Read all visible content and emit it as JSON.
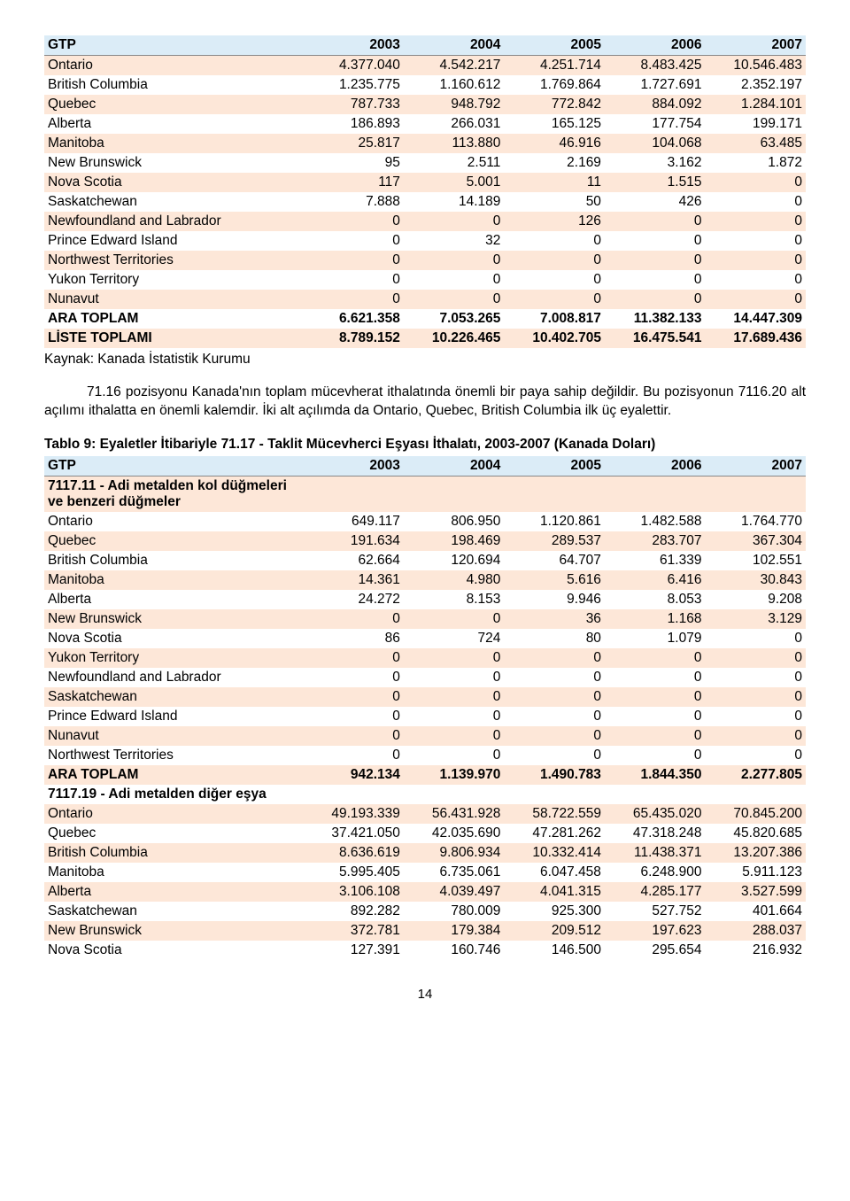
{
  "table1": {
    "columns": [
      "GTP",
      "2003",
      "2004",
      "2005",
      "2006",
      "2007"
    ],
    "rows": [
      {
        "c": [
          "Ontario",
          "4.377.040",
          "4.542.217",
          "4.251.714",
          "8.483.425",
          "10.546.483"
        ],
        "bold": false
      },
      {
        "c": [
          "British Columbia",
          "1.235.775",
          "1.160.612",
          "1.769.864",
          "1.727.691",
          "2.352.197"
        ],
        "bold": false
      },
      {
        "c": [
          "Quebec",
          "787.733",
          "948.792",
          "772.842",
          "884.092",
          "1.284.101"
        ],
        "bold": false
      },
      {
        "c": [
          "Alberta",
          "186.893",
          "266.031",
          "165.125",
          "177.754",
          "199.171"
        ],
        "bold": false
      },
      {
        "c": [
          "Manitoba",
          "25.817",
          "113.880",
          "46.916",
          "104.068",
          "63.485"
        ],
        "bold": false
      },
      {
        "c": [
          "New Brunswick",
          "95",
          "2.511",
          "2.169",
          "3.162",
          "1.872"
        ],
        "bold": false
      },
      {
        "c": [
          "Nova Scotia",
          "117",
          "5.001",
          "11",
          "1.515",
          "0"
        ],
        "bold": false
      },
      {
        "c": [
          "Saskatchewan",
          "7.888",
          "14.189",
          "50",
          "426",
          "0"
        ],
        "bold": false
      },
      {
        "c": [
          "Newfoundland and Labrador",
          "0",
          "0",
          "126",
          "0",
          "0"
        ],
        "bold": false
      },
      {
        "c": [
          "Prince Edward Island",
          "0",
          "32",
          "0",
          "0",
          "0"
        ],
        "bold": false
      },
      {
        "c": [
          "Northwest Territories",
          "0",
          "0",
          "0",
          "0",
          "0"
        ],
        "bold": false
      },
      {
        "c": [
          "Yukon Territory",
          "0",
          "0",
          "0",
          "0",
          "0"
        ],
        "bold": false
      },
      {
        "c": [
          "Nunavut",
          "0",
          "0",
          "0",
          "0",
          "0"
        ],
        "bold": false
      },
      {
        "c": [
          "ARA TOPLAM",
          "6.621.358",
          "7.053.265",
          "7.008.817",
          "11.382.133",
          "14.447.309"
        ],
        "bold": true
      },
      {
        "c": [
          "LİSTE TOPLAMI",
          "8.789.152",
          "10.226.465",
          "10.402.705",
          "16.475.541",
          "17.689.436"
        ],
        "bold": true
      }
    ]
  },
  "source_text": "Kaynak: Kanada İstatistik Kurumu",
  "paragraph": "71.16 pozisyonu Kanada'nın toplam mücevherat ithalatında önemli bir paya sahip değildir. Bu pozisyonun 7116.20 alt açılımı ithalatta en önemli kalemdir. İki alt açılımda da Ontario, Quebec, British Columbia ilk üç eyalettir.",
  "table2_title": "Tablo 9: Eyaletler İtibariyle 71.17 - Taklit Mücevherci Eşyası İthalatı, 2003-2007 (Kanada Doları)",
  "table2": {
    "columns": [
      "GTP",
      "2003",
      "2004",
      "2005",
      "2006",
      "2007"
    ],
    "rows": [
      {
        "c": [
          "7117.11 - Adi metalden kol düğmeleri ve benzeri düğmeler",
          "",
          "",
          "",
          "",
          ""
        ],
        "bold": true
      },
      {
        "c": [
          "Ontario",
          "649.117",
          "806.950",
          "1.120.861",
          "1.482.588",
          "1.764.770"
        ],
        "bold": false
      },
      {
        "c": [
          "Quebec",
          "191.634",
          "198.469",
          "289.537",
          "283.707",
          "367.304"
        ],
        "bold": false
      },
      {
        "c": [
          "British Columbia",
          "62.664",
          "120.694",
          "64.707",
          "61.339",
          "102.551"
        ],
        "bold": false
      },
      {
        "c": [
          "Manitoba",
          "14.361",
          "4.980",
          "5.616",
          "6.416",
          "30.843"
        ],
        "bold": false
      },
      {
        "c": [
          "Alberta",
          "24.272",
          "8.153",
          "9.946",
          "8.053",
          "9.208"
        ],
        "bold": false
      },
      {
        "c": [
          "New Brunswick",
          "0",
          "0",
          "36",
          "1.168",
          "3.129"
        ],
        "bold": false
      },
      {
        "c": [
          "Nova Scotia",
          "86",
          "724",
          "80",
          "1.079",
          "0"
        ],
        "bold": false
      },
      {
        "c": [
          "Yukon Territory",
          "0",
          "0",
          "0",
          "0",
          "0"
        ],
        "bold": false
      },
      {
        "c": [
          "Newfoundland and Labrador",
          "0",
          "0",
          "0",
          "0",
          "0"
        ],
        "bold": false
      },
      {
        "c": [
          "Saskatchewan",
          "0",
          "0",
          "0",
          "0",
          "0"
        ],
        "bold": false
      },
      {
        "c": [
          "Prince Edward Island",
          "0",
          "0",
          "0",
          "0",
          "0"
        ],
        "bold": false
      },
      {
        "c": [
          "Nunavut",
          "0",
          "0",
          "0",
          "0",
          "0"
        ],
        "bold": false
      },
      {
        "c": [
          "Northwest Territories",
          "0",
          "0",
          "0",
          "0",
          "0"
        ],
        "bold": false
      },
      {
        "c": [
          "ARA TOPLAM",
          "942.134",
          "1.139.970",
          "1.490.783",
          "1.844.350",
          "2.277.805"
        ],
        "bold": true
      },
      {
        "c": [
          "7117.19 - Adi metalden diğer eşya",
          "",
          "",
          "",
          "",
          ""
        ],
        "bold": true
      },
      {
        "c": [
          "Ontario",
          "49.193.339",
          "56.431.928",
          "58.722.559",
          "65.435.020",
          "70.845.200"
        ],
        "bold": false
      },
      {
        "c": [
          "Quebec",
          "37.421.050",
          "42.035.690",
          "47.281.262",
          "47.318.248",
          "45.820.685"
        ],
        "bold": false
      },
      {
        "c": [
          "British Columbia",
          "8.636.619",
          "9.806.934",
          "10.332.414",
          "11.438.371",
          "13.207.386"
        ],
        "bold": false
      },
      {
        "c": [
          "Manitoba",
          "5.995.405",
          "6.735.061",
          "6.047.458",
          "6.248.900",
          "5.911.123"
        ],
        "bold": false
      },
      {
        "c": [
          "Alberta",
          "3.106.108",
          "4.039.497",
          "4.041.315",
          "4.285.177",
          "3.527.599"
        ],
        "bold": false
      },
      {
        "c": [
          "Saskatchewan",
          "892.282",
          "780.009",
          "925.300",
          "527.752",
          "401.664"
        ],
        "bold": false
      },
      {
        "c": [
          "New Brunswick",
          "372.781",
          "179.384",
          "209.512",
          "197.623",
          "288.037"
        ],
        "bold": false
      },
      {
        "c": [
          "Nova Scotia",
          "127.391",
          "160.746",
          "146.500",
          "295.654",
          "216.932"
        ],
        "bold": false
      }
    ]
  },
  "page_number": "14",
  "colors": {
    "header_bg": "#dbecf7",
    "odd_bg": "#fde7d8",
    "even_bg": "#ffffff"
  }
}
